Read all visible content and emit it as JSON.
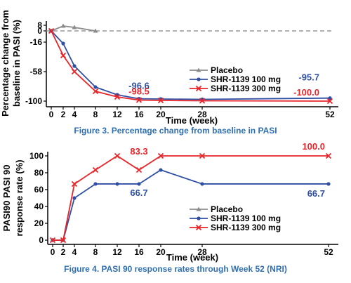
{
  "colors": {
    "placebo": "#8c8c8c",
    "shr100": "#2e4fa3",
    "shr300": "#e8262a",
    "caption": "#2e6fb5"
  },
  "chart_data": [
    {
      "type": "line",
      "title": "Figure 3. Percentage change from baseline in PASI",
      "xlabel": "Time (week)",
      "ylabel": "Percentage change from baseline in PASI (%)",
      "x_ticks": [
        0,
        2,
        4,
        8,
        12,
        16,
        20,
        28,
        52
      ],
      "y_ticks": [
        8,
        0,
        -16,
        -58,
        -100
      ],
      "ylim": [
        -100,
        8
      ],
      "reference_line": 0,
      "legend": [
        "Placebo",
        "SHR-1139 100 mg",
        "SHR-1139 300 mg"
      ],
      "series": [
        {
          "name": "Placebo",
          "x": [
            0,
            2,
            4,
            8
          ],
          "y": [
            0,
            7,
            5,
            0
          ],
          "marker": "triangle"
        },
        {
          "name": "SHR-1139 100 mg",
          "x": [
            0,
            2,
            4,
            8,
            12,
            16,
            20,
            28,
            52
          ],
          "y": [
            0,
            -18,
            -50,
            -80,
            -91,
            -96.6,
            -97,
            -97.5,
            -95.7
          ],
          "marker": "circle"
        },
        {
          "name": "SHR-1139 300 mg",
          "x": [
            0,
            2,
            4,
            8,
            12,
            16,
            20,
            28,
            52
          ],
          "y": [
            0,
            -35,
            -58,
            -86,
            -94,
            -98.5,
            -99,
            -99.5,
            -100
          ],
          "marker": "x"
        }
      ],
      "data_labels": [
        {
          "text": "-96.6",
          "series": "SHR-1139 100 mg",
          "x": 16,
          "y": -96.6
        },
        {
          "text": "-98.5",
          "series": "SHR-1139 300 mg",
          "x": 16,
          "y": -98.5
        },
        {
          "text": "-95.7",
          "series": "SHR-1139 100 mg",
          "x": 52,
          "y": -95.7
        },
        {
          "text": "-100.0",
          "series": "SHR-1139 300 mg",
          "x": 52,
          "y": -100
        }
      ]
    },
    {
      "type": "line",
      "title": "Figure 4. PASI 90 response rates through Week 52 (NRI)",
      "xlabel": "Time (week)",
      "ylabel": "PASI90 PASI 90 response rate (%)",
      "x_ticks": [
        0,
        2,
        4,
        8,
        12,
        16,
        20,
        28,
        52
      ],
      "y_ticks": [
        0,
        20,
        40,
        60,
        80,
        100
      ],
      "ylim": [
        0,
        100
      ],
      "legend": [
        "Placebo",
        "SHR-1139 100 mg",
        "SHR-1139 300 mg"
      ],
      "series": [
        {
          "name": "Placebo",
          "x": [
            0,
            2
          ],
          "y": [
            0,
            0
          ],
          "marker": "triangle"
        },
        {
          "name": "SHR-1139 100 mg",
          "x": [
            0,
            2,
            4,
            8,
            12,
            16,
            20,
            28,
            52
          ],
          "y": [
            0,
            0,
            50,
            66.7,
            66.7,
            66.7,
            83.3,
            66.7,
            66.7
          ],
          "marker": "circle"
        },
        {
          "name": "SHR-1139 300 mg",
          "x": [
            0,
            2,
            4,
            8,
            12,
            16,
            20,
            28,
            52
          ],
          "y": [
            0,
            0,
            66.7,
            83.3,
            100,
            83.3,
            100,
            100,
            100
          ],
          "marker": "x"
        }
      ],
      "data_labels": [
        {
          "text": "83.3",
          "series": "SHR-1139 300 mg",
          "x": 16,
          "y": 83.3
        },
        {
          "text": "66.7",
          "series": "SHR-1139 100 mg",
          "x": 16,
          "y": 66.7
        },
        {
          "text": "100.0",
          "series": "SHR-1139 300 mg",
          "x": 52,
          "y": 100
        },
        {
          "text": "66.7",
          "series": "SHR-1139 100 mg",
          "x": 52,
          "y": 66.7
        }
      ]
    }
  ]
}
